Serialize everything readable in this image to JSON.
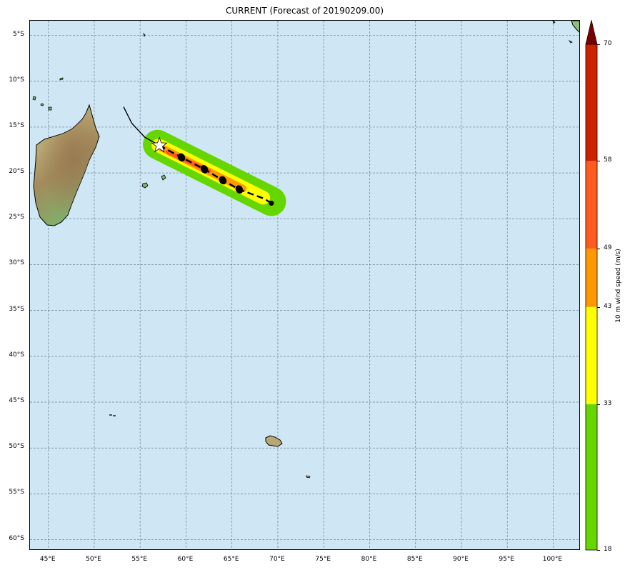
{
  "title": "CURRENT (Forecast of 20190209.00)",
  "map": {
    "lon_range": [
      43,
      103
    ],
    "lat_range": [
      -61.2,
      -3.4
    ],
    "lat_ticks": [
      {
        "value": -5,
        "label": "5°S"
      },
      {
        "value": -10,
        "label": "10°S"
      },
      {
        "value": -15,
        "label": "15°S"
      },
      {
        "value": -20,
        "label": "20°S"
      },
      {
        "value": -25,
        "label": "25°S"
      },
      {
        "value": -30,
        "label": "30°S"
      },
      {
        "value": -35,
        "label": "35°S"
      },
      {
        "value": -40,
        "label": "40°S"
      },
      {
        "value": -45,
        "label": "45°S"
      },
      {
        "value": -50,
        "label": "50°S"
      },
      {
        "value": -55,
        "label": "55°S"
      },
      {
        "value": -60,
        "label": "60°S"
      }
    ],
    "lon_ticks": [
      {
        "value": 45,
        "label": "45°E"
      },
      {
        "value": 50,
        "label": "50°E"
      },
      {
        "value": 55,
        "label": "55°E"
      },
      {
        "value": 60,
        "label": "60°E"
      },
      {
        "value": 65,
        "label": "65°E"
      },
      {
        "value": 70,
        "label": "70°E"
      },
      {
        "value": 75,
        "label": "75°E"
      },
      {
        "value": 80,
        "label": "80°E"
      },
      {
        "value": 85,
        "label": "85°E"
      },
      {
        "value": 90,
        "label": "90°E"
      },
      {
        "value": 95,
        "label": "95°E"
      },
      {
        "value": 100,
        "label": "100°E"
      }
    ],
    "ocean_color": "#cfe6f5",
    "grid_color": "#6f8294",
    "observed_track": [
      [
        53.2,
        -12.8
      ],
      [
        54.1,
        -14.6
      ],
      [
        55.5,
        -16.1
      ],
      [
        57.1,
        -17.0
      ]
    ],
    "forecast_track": [
      [
        57.1,
        -17.0
      ],
      [
        59.5,
        -18.3
      ],
      [
        62.0,
        -19.6
      ],
      [
        64.0,
        -20.8
      ],
      [
        65.8,
        -21.8
      ],
      [
        68.5,
        -22.8
      ],
      [
        69.3,
        -23.3
      ]
    ],
    "forecast_points": [
      [
        59.5,
        -18.3
      ],
      [
        62.0,
        -19.6
      ],
      [
        64.0,
        -20.8
      ],
      [
        65.8,
        -21.8
      ],
      [
        69.3,
        -23.3
      ]
    ],
    "current_position": [
      57.1,
      -17.0
    ],
    "wind_swath_bands": [
      {
        "color": "#66d600",
        "path": [
          [
            56.9,
            -16.9
          ],
          [
            69.3,
            -23.1
          ]
        ],
        "width_deg": 3.2
      },
      {
        "color": "#ffff00",
        "path": [
          [
            57.0,
            -17.0
          ],
          [
            68.4,
            -22.7
          ]
        ],
        "width_deg": 1.5
      },
      {
        "color": "#ff9900",
        "path": [
          [
            57.4,
            -17.3
          ],
          [
            66.2,
            -21.7
          ]
        ],
        "width_deg": 0.8
      },
      {
        "color": "#ff5a1f",
        "path": [
          [
            58.0,
            -17.7
          ],
          [
            62.5,
            -19.8
          ]
        ],
        "width_deg": 0.45
      }
    ]
  },
  "colorbar": {
    "label": "10 m wind speed (m/s)",
    "range": [
      18,
      70
    ],
    "ticks": [
      {
        "value": 18,
        "label": "18"
      },
      {
        "value": 33,
        "label": "33"
      },
      {
        "value": 43,
        "label": "43"
      },
      {
        "value": 49,
        "label": "49"
      },
      {
        "value": 58,
        "label": "58"
      },
      {
        "value": 70,
        "label": "70"
      }
    ],
    "bands": [
      {
        "from": 18,
        "to": 33,
        "color": "#66d600"
      },
      {
        "from": 33,
        "to": 43,
        "color": "#ffff00"
      },
      {
        "from": 43,
        "to": 49,
        "color": "#ff9900"
      },
      {
        "from": 49,
        "to": 58,
        "color": "#ff5a1f"
      },
      {
        "from": 58,
        "to": 70,
        "color": "#cc2200"
      }
    ],
    "extend_color": "#7a0000"
  }
}
